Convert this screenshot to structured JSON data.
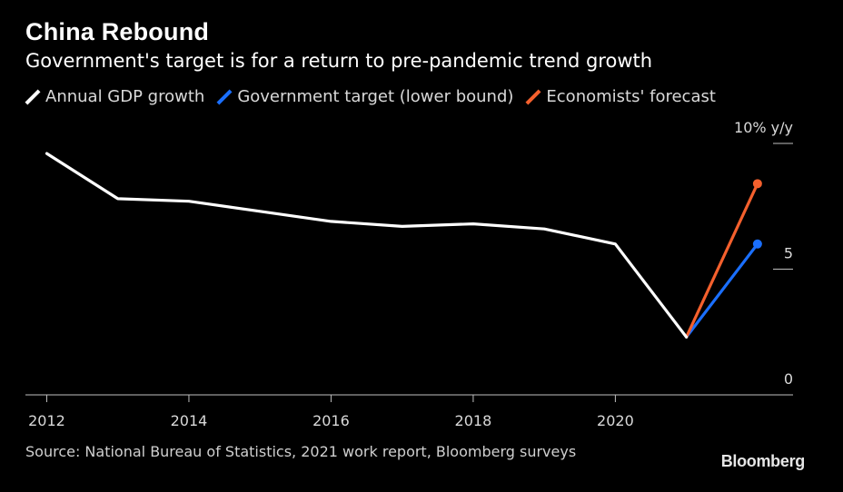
{
  "chart_data": {
    "type": "line",
    "title": "China Rebound",
    "subtitle": "Government's target is for a return to pre-pandemic trend growth",
    "ylabel": "10% y/y",
    "x_ticks": [
      2012,
      2014,
      2016,
      2018,
      2020
    ],
    "y_ticks": [
      {
        "value": 0,
        "label": "0"
      },
      {
        "value": 5,
        "label": "5"
      },
      {
        "value": 10,
        "label": "10% y/y"
      }
    ],
    "xlim": [
      2011.7,
      2022.5
    ],
    "ylim": [
      0,
      10
    ],
    "series": [
      {
        "name": "Annual GDP growth",
        "color": "#ffffff",
        "x": [
          2012,
          2013,
          2014,
          2015,
          2016,
          2017,
          2018,
          2019,
          2020,
          2021
        ],
        "values": [
          9.6,
          7.8,
          7.7,
          7.3,
          6.9,
          6.7,
          6.8,
          6.6,
          6.0,
          2.3
        ]
      },
      {
        "name": "Government target (lower bound)",
        "color": "#1a6fff",
        "x": [
          2021,
          2022
        ],
        "values": [
          2.3,
          6.0
        ]
      },
      {
        "name": "Economists' forecast",
        "color": "#f4602d",
        "x": [
          2021,
          2022
        ],
        "values": [
          2.3,
          8.4
        ]
      }
    ]
  },
  "footer": {
    "source": "Source: National Bureau of Statistics, 2021 work report, Bloomberg surveys",
    "brand": "Bloomberg"
  }
}
